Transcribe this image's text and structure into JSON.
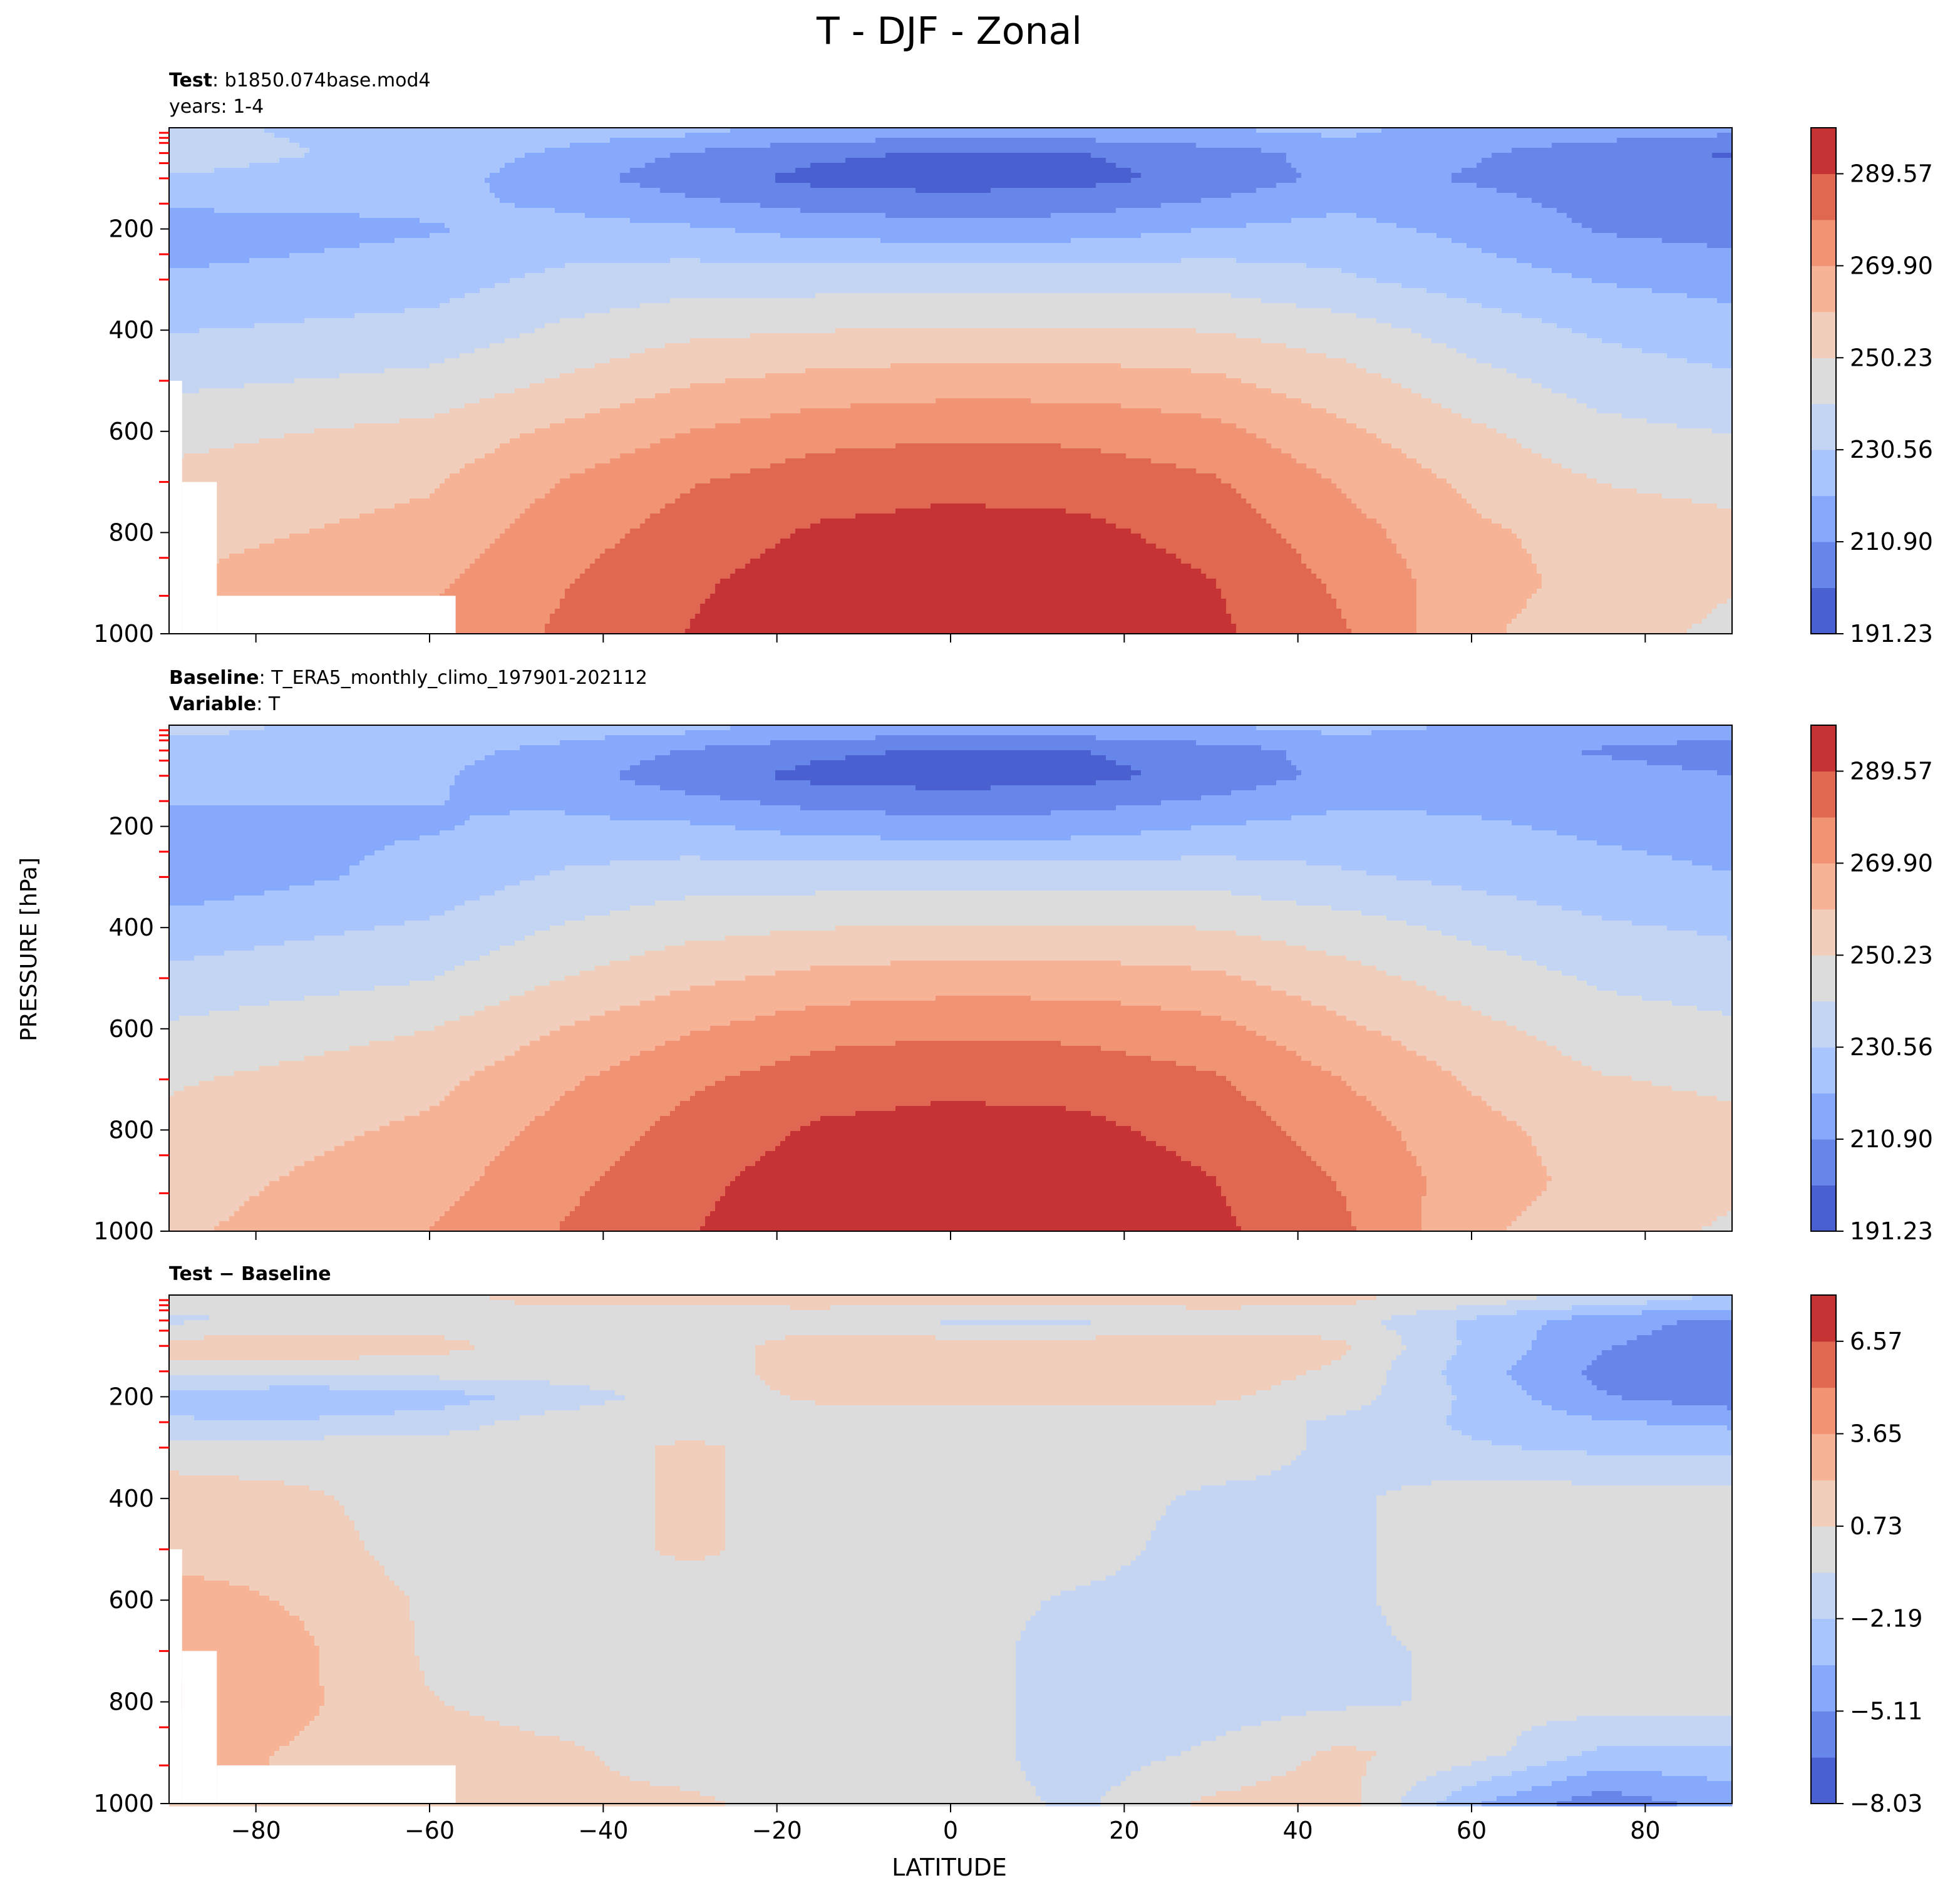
{
  "figure": {
    "title": "T - DJF - Zonal",
    "shared_ylabel": "PRESSURE [hPa]",
    "shared_xlabel": "LATITUDE"
  },
  "chart_data": [
    {
      "type": "heatmap",
      "panel": "test",
      "header": [
        {
          "bold": "Test",
          "rest": ": b1850.074base.mod4"
        },
        {
          "bold": "",
          "rest": "years: 1-4"
        }
      ],
      "x": [
        -90,
        -60,
        -45,
        -30,
        -15,
        0,
        15,
        30,
        45,
        60,
        75,
        90
      ],
      "y": [
        10,
        50,
        100,
        200,
        300,
        400,
        500,
        600,
        700,
        800,
        900,
        1000
      ],
      "z": [
        [
          232,
          228,
          225,
          222,
          218,
          214,
          216,
          220,
          222,
          218,
          215,
          212
        ],
        [
          235,
          227,
          219,
          210,
          203,
          200,
          201,
          206,
          215,
          212,
          205,
          200
        ],
        [
          230,
          225,
          215,
          205,
          198,
          196,
          198,
          204,
          214,
          210,
          206,
          204
        ],
        [
          215,
          220,
          224,
          222,
          217,
          215,
          216,
          221,
          224,
          218,
          210,
          207
        ],
        [
          222,
          226,
          233,
          236,
          236,
          237,
          237,
          237,
          232,
          226,
          220,
          217
        ],
        [
          230,
          234,
          242,
          248,
          250,
          251,
          251,
          250,
          245,
          236,
          229,
          225
        ],
        [
          238,
          243,
          251,
          259,
          263,
          265,
          265,
          262,
          254,
          244,
          236,
          232
        ],
        [
          247,
          253,
          262,
          270,
          276,
          278,
          277,
          273,
          262,
          252,
          243,
          240
        ],
        [
          253,
          259,
          270,
          279,
          285,
          287,
          286,
          281,
          269,
          258,
          250,
          247
        ],
        [
          257,
          263,
          275,
          284,
          291,
          293,
          292,
          286,
          274,
          262,
          256,
          253
        ],
        [
          260,
          268,
          279,
          288,
          295,
          297,
          296,
          290,
          278,
          264,
          257,
          251
        ],
        [
          262,
          272,
          281,
          290,
          297,
          299,
          298,
          292,
          281,
          262,
          254,
          248
        ]
      ],
      "levels": [
        191.23,
        201.06,
        210.9,
        220.73,
        230.56,
        240.4,
        250.23,
        260.06,
        269.9,
        279.73,
        289.57,
        299.4
      ],
      "colorbar_ticks": [
        "191.23",
        "210.90",
        "230.56",
        "250.23",
        "269.90",
        "289.57"
      ],
      "mask": [
        [
          -90,
          500,
          -88.5,
          1000
        ],
        [
          -88.5,
          700,
          -84.5,
          1000
        ],
        [
          -84.5,
          925,
          -57,
          1000
        ]
      ],
      "xlim": [
        -90,
        90
      ],
      "ylim": [
        1000,
        0
      ],
      "yticks": [
        "200",
        "400",
        "600",
        "800",
        "1000"
      ],
      "xticks": [
        "-80",
        "-60",
        "-40",
        "-20",
        "0",
        "20",
        "40",
        "60",
        "80"
      ]
    },
    {
      "type": "heatmap",
      "panel": "baseline",
      "header": [
        {
          "bold": "Baseline",
          "rest": ": T_ERA5_monthly_climo_197901-202112"
        },
        {
          "bold": "Variable",
          "rest": ": T"
        }
      ],
      "x": [
        -90,
        -60,
        -45,
        -30,
        -15,
        0,
        15,
        30,
        45,
        60,
        75,
        90
      ],
      "y": [
        10,
        50,
        100,
        200,
        300,
        400,
        500,
        600,
        700,
        800,
        900,
        1000
      ],
      "z": [
        [
          232,
          228,
          225,
          222,
          218,
          214,
          216,
          220,
          222,
          220,
          217,
          214
        ],
        [
          228,
          224,
          218,
          210,
          203,
          200,
          201,
          206,
          215,
          214,
          210,
          207
        ],
        [
          224,
          222,
          215,
          205,
          198,
          196,
          198,
          204,
          214,
          216,
          214,
          211
        ],
        [
          218,
          220,
          223,
          222,
          217,
          215,
          216,
          221,
          224,
          222,
          219,
          217
        ],
        [
          214,
          224,
          232,
          236,
          236,
          237,
          237,
          237,
          232,
          228,
          224,
          221
        ],
        [
          225,
          232,
          241,
          247,
          250,
          251,
          251,
          250,
          245,
          238,
          232,
          229
        ],
        [
          233,
          240,
          250,
          258,
          263,
          265,
          265,
          262,
          254,
          246,
          239,
          236
        ],
        [
          242,
          250,
          260,
          269,
          276,
          278,
          277,
          273,
          262,
          253,
          245,
          242
        ],
        [
          249,
          257,
          268,
          278,
          285,
          287,
          286,
          281,
          270,
          259,
          251,
          248
        ],
        [
          253,
          262,
          273,
          283,
          291,
          293,
          292,
          286,
          275,
          263,
          256,
          253
        ],
        [
          256,
          266,
          277,
          287,
          295,
          297,
          296,
          290,
          279,
          265,
          257,
          252
        ],
        [
          258,
          270,
          280,
          289,
          297,
          299,
          298,
          292,
          282,
          262,
          254,
          249
        ]
      ],
      "levels": [
        191.23,
        201.06,
        210.9,
        220.73,
        230.56,
        240.4,
        250.23,
        260.06,
        269.9,
        279.73,
        289.57,
        299.4
      ],
      "colorbar_ticks": [
        "191.23",
        "210.90",
        "230.56",
        "250.23",
        "269.90",
        "289.57"
      ],
      "mask": [],
      "xlim": [
        -90,
        90
      ],
      "ylim": [
        1000,
        0
      ],
      "yticks": [
        "200",
        "400",
        "600",
        "800",
        "1000"
      ],
      "xticks": [
        "-80",
        "-60",
        "-40",
        "-20",
        "0",
        "20",
        "40",
        "60",
        "80"
      ]
    },
    {
      "type": "heatmap",
      "panel": "difference",
      "header": [
        {
          "bold": "Test − Baseline",
          "rest": ""
        }
      ],
      "x": [
        -90,
        -75,
        -60,
        -45,
        -30,
        -15,
        0,
        15,
        30,
        45,
        60,
        75,
        90
      ],
      "y": [
        10,
        50,
        100,
        150,
        200,
        250,
        300,
        400,
        500,
        600,
        700,
        800,
        900,
        1000
      ],
      "z": [
        [
          0.0,
          0.0,
          0.5,
          1.0,
          1.0,
          1.2,
          1.0,
          1.5,
          1.2,
          1.0,
          0.0,
          -1.5,
          -2.5
        ],
        [
          -1.0,
          -0.5,
          0.0,
          0.0,
          0.0,
          0.0,
          -1.0,
          -1.0,
          0.0,
          0.0,
          -2.5,
          -4.5,
          -5.5
        ],
        [
          1.5,
          1.5,
          1.2,
          0.0,
          0.0,
          1.5,
          1.5,
          1.5,
          1.5,
          1.0,
          -2.5,
          -5.0,
          -6.0
        ],
        [
          0.0,
          0.0,
          0.0,
          0.0,
          0.0,
          1.5,
          1.5,
          1.5,
          1.5,
          0.5,
          -3.0,
          -5.5,
          -6.5
        ],
        [
          -3.0,
          -3.5,
          -3.0,
          -1.5,
          0.0,
          1.0,
          1.0,
          1.0,
          1.0,
          0.0,
          -2.5,
          -5.0,
          -6.0
        ],
        [
          -2.0,
          -2.0,
          -1.5,
          0.0,
          0.0,
          0.0,
          0.0,
          0.0,
          0.0,
          -1.0,
          -2.5,
          -3.5,
          -4.0
        ],
        [
          0.0,
          0.0,
          0.0,
          0.0,
          1.0,
          0.0,
          0.0,
          0.0,
          0.0,
          -1.0,
          -2.0,
          -2.5,
          -2.5
        ],
        [
          1.5,
          1.0,
          0.0,
          0.0,
          1.0,
          0.0,
          0.0,
          0.0,
          -1.0,
          -1.0,
          0.0,
          0.0,
          0.0
        ],
        [
          1.5,
          1.5,
          0.0,
          0.0,
          1.0,
          0.0,
          0.0,
          0.0,
          -1.5,
          -1.0,
          0.0,
          0.0,
          0.0
        ],
        [
          3.0,
          2.0,
          0.5,
          0.0,
          0.0,
          0.0,
          0.0,
          -1.0,
          -1.5,
          -1.0,
          0.0,
          0.0,
          0.0
        ],
        [
          3.5,
          2.5,
          0.5,
          0.0,
          0.0,
          0.0,
          0.0,
          -1.5,
          -1.5,
          -1.0,
          -0.5,
          0.0,
          0.0
        ],
        [
          4.0,
          2.5,
          0.8,
          0.0,
          0.0,
          0.0,
          0.0,
          -1.5,
          -1.5,
          -1.0,
          -0.5,
          0.0,
          0.0
        ],
        [
          3.0,
          2.0,
          1.5,
          1.0,
          0.0,
          0.0,
          0.0,
          -1.5,
          -0.5,
          1.0,
          0.0,
          -2.5,
          -2.5
        ],
        [
          2.0,
          2.0,
          1.5,
          1.0,
          1.0,
          0.0,
          0.0,
          -1.0,
          1.0,
          1.5,
          -3.5,
          -6.0,
          -4.5
        ]
      ],
      "levels": [
        -8.03,
        -6.57,
        -5.11,
        -3.65,
        -2.19,
        -0.73,
        0.73,
        2.19,
        3.65,
        5.11,
        6.57,
        8.03
      ],
      "colorbar_ticks": [
        "−8.03",
        "−5.11",
        "−2.19",
        "0.73",
        "3.65",
        "6.57"
      ],
      "mask": [
        [
          -90,
          500,
          -88.5,
          1000
        ],
        [
          -88.5,
          700,
          -84.5,
          1000
        ],
        [
          -84.5,
          925,
          -57,
          1000
        ]
      ],
      "xlim": [
        -90,
        90
      ],
      "ylim": [
        1000,
        0
      ],
      "yticks": [
        "200",
        "400",
        "600",
        "800",
        "1000"
      ],
      "xticks": [
        "−80",
        "−60",
        "−40",
        "−20",
        "0",
        "20",
        "40",
        "60",
        "80"
      ]
    }
  ],
  "colors": {
    "cmap": [
      "#4a60d0",
      "#6786e9",
      "#87a9fb",
      "#a8c5fe",
      "#c4d5f3",
      "#dddcdc",
      "#f1cdbc",
      "#f6b396",
      "#f19475",
      "#e06752",
      "#c53334"
    ],
    "minor_tick": "#ff0000"
  }
}
